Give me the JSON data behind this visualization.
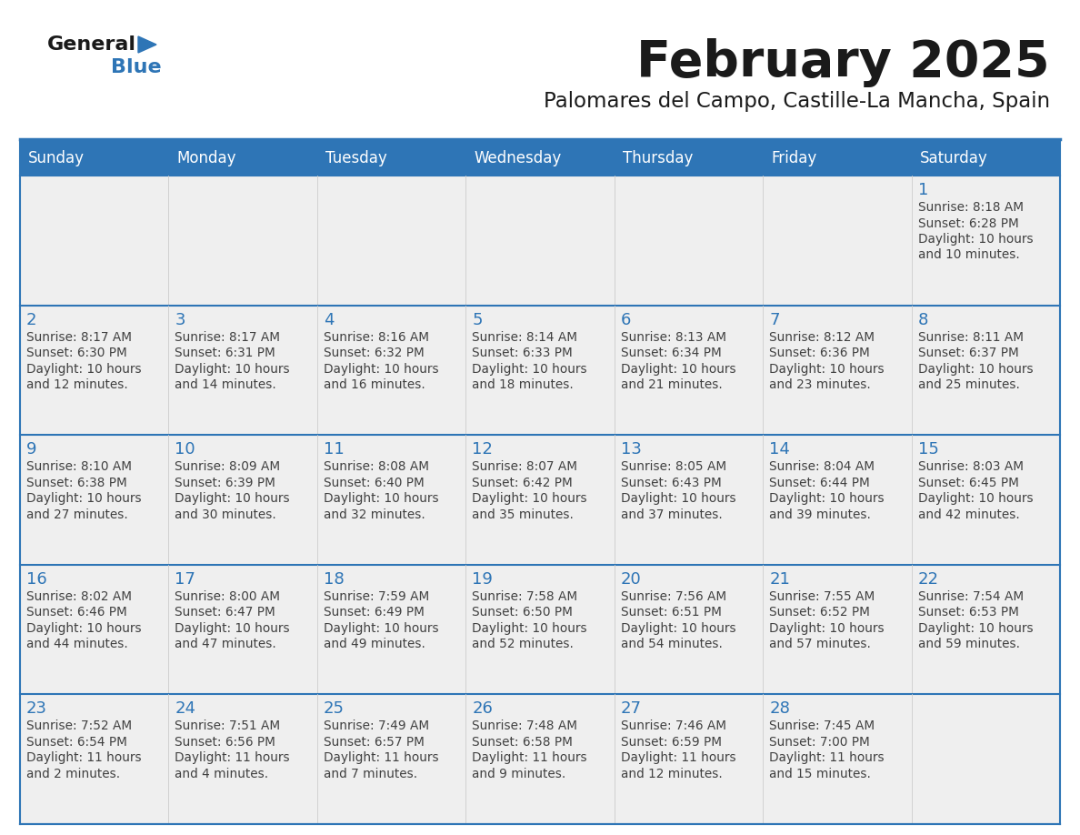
{
  "title": "February 2025",
  "subtitle": "Palomares del Campo, Castille-La Mancha, Spain",
  "days_of_week": [
    "Sunday",
    "Monday",
    "Tuesday",
    "Wednesday",
    "Thursday",
    "Friday",
    "Saturday"
  ],
  "header_bg": "#2E75B6",
  "header_text": "#FFFFFF",
  "cell_bg": "#EFEFEF",
  "cell_bg_white": "#FFFFFF",
  "border_color": "#2E75B6",
  "title_color": "#1a1a1a",
  "subtitle_color": "#1a1a1a",
  "day_number_color": "#2E75B6",
  "cell_text_color": "#404040",
  "logo_general_color": "#1a1a1a",
  "logo_blue_color": "#2E75B6",
  "logo_triangle_color": "#2E75B6",
  "calendar_data": [
    [
      null,
      null,
      null,
      null,
      null,
      null,
      {
        "day": 1,
        "sunrise": "8:18 AM",
        "sunset": "6:28 PM",
        "daylight": "10 hours and 10 minutes."
      }
    ],
    [
      {
        "day": 2,
        "sunrise": "8:17 AM",
        "sunset": "6:30 PM",
        "daylight": "10 hours and 12 minutes."
      },
      {
        "day": 3,
        "sunrise": "8:17 AM",
        "sunset": "6:31 PM",
        "daylight": "10 hours and 14 minutes."
      },
      {
        "day": 4,
        "sunrise": "8:16 AM",
        "sunset": "6:32 PM",
        "daylight": "10 hours and 16 minutes."
      },
      {
        "day": 5,
        "sunrise": "8:14 AM",
        "sunset": "6:33 PM",
        "daylight": "10 hours and 18 minutes."
      },
      {
        "day": 6,
        "sunrise": "8:13 AM",
        "sunset": "6:34 PM",
        "daylight": "10 hours and 21 minutes."
      },
      {
        "day": 7,
        "sunrise": "8:12 AM",
        "sunset": "6:36 PM",
        "daylight": "10 hours and 23 minutes."
      },
      {
        "day": 8,
        "sunrise": "8:11 AM",
        "sunset": "6:37 PM",
        "daylight": "10 hours and 25 minutes."
      }
    ],
    [
      {
        "day": 9,
        "sunrise": "8:10 AM",
        "sunset": "6:38 PM",
        "daylight": "10 hours and 27 minutes."
      },
      {
        "day": 10,
        "sunrise": "8:09 AM",
        "sunset": "6:39 PM",
        "daylight": "10 hours and 30 minutes."
      },
      {
        "day": 11,
        "sunrise": "8:08 AM",
        "sunset": "6:40 PM",
        "daylight": "10 hours and 32 minutes."
      },
      {
        "day": 12,
        "sunrise": "8:07 AM",
        "sunset": "6:42 PM",
        "daylight": "10 hours and 35 minutes."
      },
      {
        "day": 13,
        "sunrise": "8:05 AM",
        "sunset": "6:43 PM",
        "daylight": "10 hours and 37 minutes."
      },
      {
        "day": 14,
        "sunrise": "8:04 AM",
        "sunset": "6:44 PM",
        "daylight": "10 hours and 39 minutes."
      },
      {
        "day": 15,
        "sunrise": "8:03 AM",
        "sunset": "6:45 PM",
        "daylight": "10 hours and 42 minutes."
      }
    ],
    [
      {
        "day": 16,
        "sunrise": "8:02 AM",
        "sunset": "6:46 PM",
        "daylight": "10 hours and 44 minutes."
      },
      {
        "day": 17,
        "sunrise": "8:00 AM",
        "sunset": "6:47 PM",
        "daylight": "10 hours and 47 minutes."
      },
      {
        "day": 18,
        "sunrise": "7:59 AM",
        "sunset": "6:49 PM",
        "daylight": "10 hours and 49 minutes."
      },
      {
        "day": 19,
        "sunrise": "7:58 AM",
        "sunset": "6:50 PM",
        "daylight": "10 hours and 52 minutes."
      },
      {
        "day": 20,
        "sunrise": "7:56 AM",
        "sunset": "6:51 PM",
        "daylight": "10 hours and 54 minutes."
      },
      {
        "day": 21,
        "sunrise": "7:55 AM",
        "sunset": "6:52 PM",
        "daylight": "10 hours and 57 minutes."
      },
      {
        "day": 22,
        "sunrise": "7:54 AM",
        "sunset": "6:53 PM",
        "daylight": "10 hours and 59 minutes."
      }
    ],
    [
      {
        "day": 23,
        "sunrise": "7:52 AM",
        "sunset": "6:54 PM",
        "daylight": "11 hours and 2 minutes."
      },
      {
        "day": 24,
        "sunrise": "7:51 AM",
        "sunset": "6:56 PM",
        "daylight": "11 hours and 4 minutes."
      },
      {
        "day": 25,
        "sunrise": "7:49 AM",
        "sunset": "6:57 PM",
        "daylight": "11 hours and 7 minutes."
      },
      {
        "day": 26,
        "sunrise": "7:48 AM",
        "sunset": "6:58 PM",
        "daylight": "11 hours and 9 minutes."
      },
      {
        "day": 27,
        "sunrise": "7:46 AM",
        "sunset": "6:59 PM",
        "daylight": "11 hours and 12 minutes."
      },
      {
        "day": 28,
        "sunrise": "7:45 AM",
        "sunset": "7:00 PM",
        "daylight": "11 hours and 15 minutes."
      },
      null
    ]
  ]
}
